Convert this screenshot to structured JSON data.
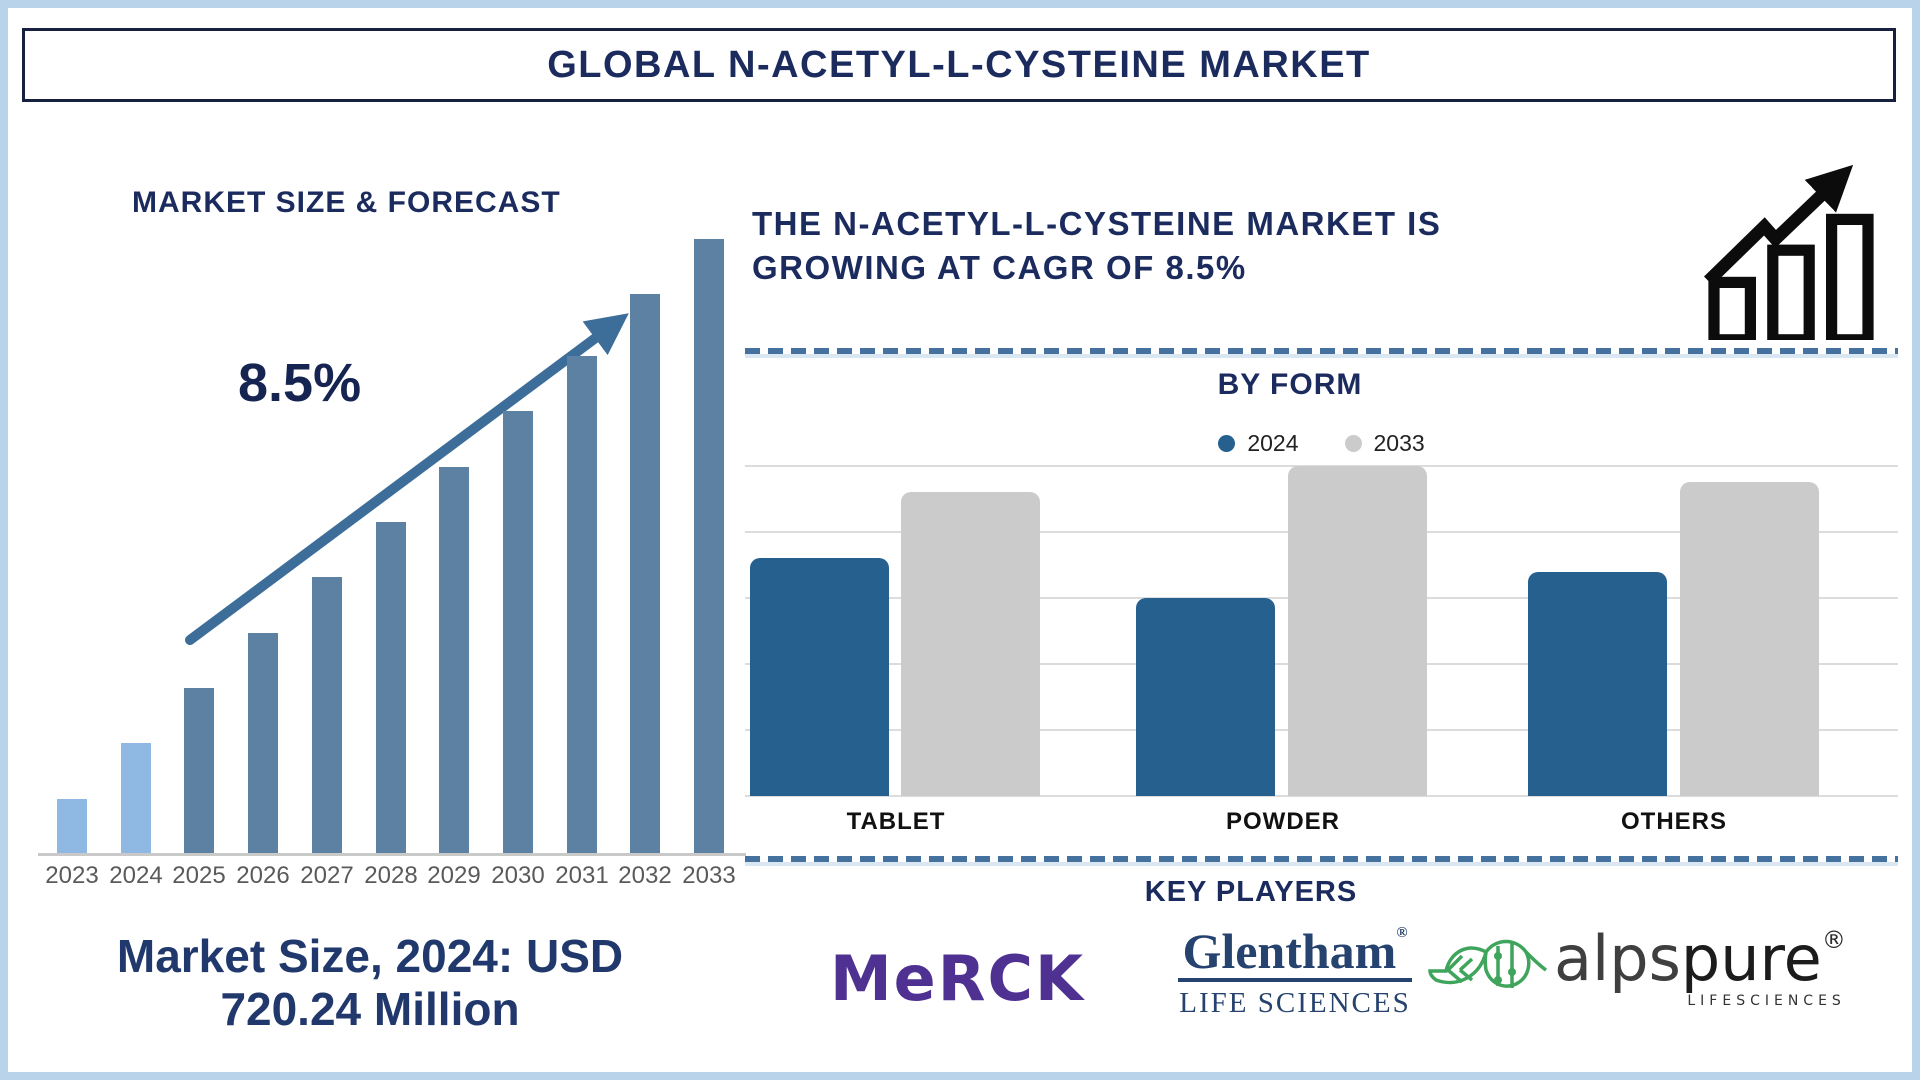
{
  "frame": {
    "title": "GLOBAL N-ACETYL-L-CYSTEINE MARKET"
  },
  "left_panel": {
    "heading": "MARKET SIZE & FORECAST",
    "cagr_label": "8.5%",
    "caption_line1": "Market Size, 2024: USD",
    "caption_line2": "720.24 Million"
  },
  "right_panel": {
    "headline_line1": "THE N-ACETYL-L-CYSTEINE MARKET IS",
    "headline_line2": "GROWING AT CAGR OF 8.5%",
    "key_players": {
      "title": "KEY PLAYERS",
      "merck_text": "MeRCK",
      "glentham_name": "Glentham",
      "glentham_reg": "®",
      "glentham_sub": "LIFE SCIENCES",
      "alpspure_alps": "alps",
      "alpspure_pure": "pure",
      "alpspure_reg": "®",
      "alpspure_sub": "LIFESCIENCES"
    }
  },
  "colors": {
    "navy": "#1b2b5e",
    "left_bar_default": "#5d81a3",
    "left_bar_highlight": "#8fb9e3",
    "arrow": "#3d6d99",
    "blue_2024": "#26608f",
    "gray_2033": "#cbcbcb",
    "merck_purple": "#4f3192",
    "glentham_navy": "#26426e",
    "alpspure_green": "#3fa45c"
  },
  "chart_data": [
    {
      "type": "bar",
      "title": "MARKET SIZE & FORECAST",
      "categories": [
        "2023",
        "2024",
        "2025",
        "2026",
        "2027",
        "2028",
        "2029",
        "2030",
        "2031",
        "2032",
        "2033"
      ],
      "values": [
        9,
        18,
        27,
        36,
        45,
        54,
        63,
        72,
        81,
        91,
        100
      ],
      "unit": "relative bar height, % of 2033 bar (stylized, no value axis shown)",
      "annotation": "8.5%",
      "known_point": {
        "year": "2024",
        "value": "USD 720.24 Million"
      },
      "highlight_years": [
        "2023",
        "2024"
      ],
      "grid": false,
      "xlabel": "",
      "ylabel": ""
    },
    {
      "type": "bar",
      "title": "BY FORM",
      "categories": [
        "TABLET",
        "POWDER",
        "OTHERS"
      ],
      "series": [
        {
          "name": "2024",
          "color": "#26608f",
          "values": [
            72,
            60,
            68
          ]
        },
        {
          "name": "2033",
          "color": "#cbcbcb",
          "values": [
            92,
            100,
            95
          ]
        }
      ],
      "unit": "relative bar height, % of tallest bar (no value axis shown)",
      "grid": true,
      "gridline_count": 6,
      "legend_position": "top"
    }
  ]
}
